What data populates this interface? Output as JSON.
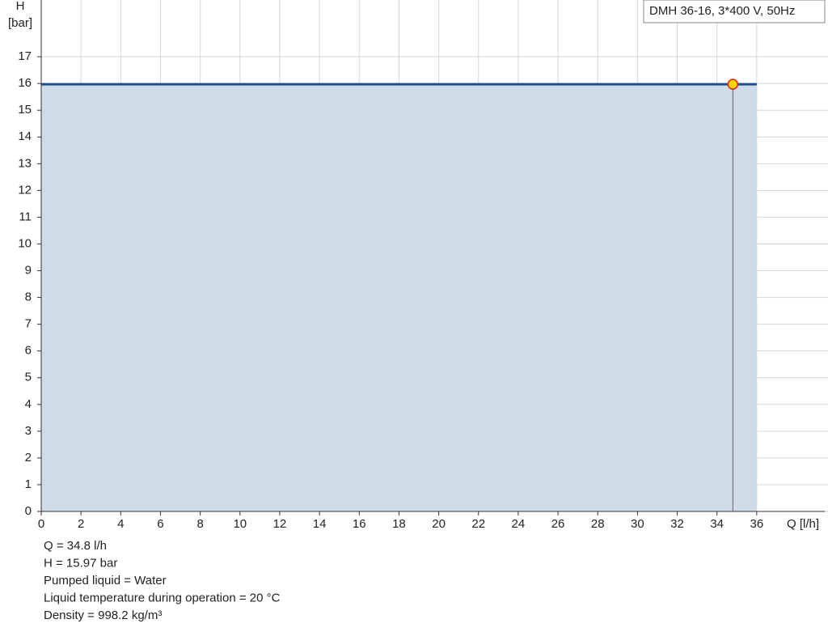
{
  "chart_data": {
    "type": "line",
    "y_label_1": "H",
    "y_label_2": "[bar]",
    "x_label": "Q [l/h]",
    "x": [
      0,
      36
    ],
    "series": [
      {
        "name": "DMH 36-16, 3*400 V, 50Hz",
        "color": "#1f4e8c",
        "values": [
          15.97,
          15.97
        ]
      }
    ],
    "area_color": "#cfdbe6",
    "duty_point": {
      "x": 34.8,
      "y": 15.97
    },
    "xlim": [
      0,
      38
    ],
    "xticks": [
      0,
      2,
      4,
      6,
      8,
      10,
      12,
      14,
      16,
      18,
      20,
      22,
      24,
      26,
      28,
      30,
      32,
      34,
      36
    ],
    "ylim": [
      0,
      19
    ],
    "yticks": [
      0,
      1,
      2,
      3,
      4,
      5,
      6,
      7,
      8,
      9,
      10,
      11,
      12,
      13,
      14,
      15,
      16,
      17
    ],
    "grid": true,
    "notes": [
      "Q = 34.8 l/h",
      "H = 15.97 bar",
      "Pumped liquid = Water",
      "Liquid temperature during operation = 20 °C",
      "Density = 998.2 kg/m³"
    ]
  }
}
